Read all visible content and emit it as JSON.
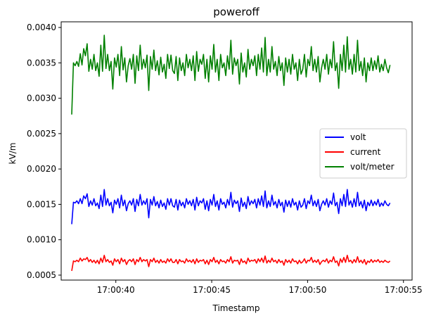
{
  "chart_data": {
    "type": "line",
    "title": "poweroff",
    "xlabel": "Timestamp",
    "ylabel": "kV/m",
    "xlim": [
      "17:00:37.15",
      "17:00:55.45"
    ],
    "ylim": [
      0.00043,
      0.00408
    ],
    "x_ticks": [
      "17:00:40",
      "17:00:45",
      "17:00:50",
      "17:00:55"
    ],
    "y_ticks": [
      "0.0005",
      "0.0010",
      "0.0015",
      "0.0020",
      "0.0025",
      "0.0030",
      "0.0035",
      "0.0040"
    ],
    "x_range": [
      "17:00:37.7",
      "17:00:54.3"
    ],
    "grid": false,
    "legend_position": "center-right",
    "series": [
      {
        "name": "volt",
        "color": "#0000ff",
        "values": [
          0.00122,
          0.00153,
          0.00152,
          0.00155,
          0.00151,
          0.00158,
          0.00151,
          0.00162,
          0.00158,
          0.00165,
          0.00147,
          0.00155,
          0.00149,
          0.00158,
          0.00148,
          0.00152,
          0.00144,
          0.00163,
          0.00147,
          0.00171,
          0.00149,
          0.00158,
          0.00148,
          0.00153,
          0.00138,
          0.00156,
          0.0015,
          0.00158,
          0.00145,
          0.00163,
          0.00148,
          0.00156,
          0.00141,
          0.00151,
          0.00155,
          0.00149,
          0.00158,
          0.0014,
          0.00157,
          0.00148,
          0.00164,
          0.00149,
          0.00155,
          0.0015,
          0.00158,
          0.00131,
          0.00157,
          0.00149,
          0.00161,
          0.00148,
          0.00154,
          0.00145,
          0.00156,
          0.00147,
          0.00152,
          0.00143,
          0.00158,
          0.00149,
          0.00158,
          0.00148,
          0.00146,
          0.00157,
          0.00142,
          0.00156,
          0.00148,
          0.00153,
          0.00145,
          0.00158,
          0.0015,
          0.00155,
          0.00148,
          0.00157,
          0.00142,
          0.0016,
          0.00148,
          0.00155,
          0.00152,
          0.00158,
          0.00143,
          0.00155,
          0.00141,
          0.00157,
          0.00149,
          0.00164,
          0.00147,
          0.00155,
          0.00142,
          0.00158,
          0.0015,
          0.00153,
          0.00145,
          0.00157,
          0.00149,
          0.00167,
          0.00146,
          0.00156,
          0.00151,
          0.00155,
          0.0014,
          0.00159,
          0.00147,
          0.00153,
          0.00144,
          0.00161,
          0.00149,
          0.00155,
          0.00151,
          0.00157,
          0.00145,
          0.00158,
          0.00149,
          0.00162,
          0.00147,
          0.00169,
          0.00145,
          0.00155,
          0.00147,
          0.00163,
          0.00149,
          0.00154,
          0.00145,
          0.00157,
          0.00148,
          0.00153,
          0.00139,
          0.00156,
          0.00147,
          0.00155,
          0.00146,
          0.00158,
          0.00149,
          0.00153,
          0.00142,
          0.00155,
          0.00146,
          0.00149,
          0.00158,
          0.00144,
          0.00155,
          0.00151,
          0.00163,
          0.00148,
          0.00155,
          0.00147,
          0.00157,
          0.00141,
          0.0015,
          0.00155,
          0.00149,
          0.00158,
          0.00146,
          0.00155,
          0.0015,
          0.00166,
          0.00148,
          0.00153,
          0.00137,
          0.00158,
          0.00148,
          0.00164,
          0.00147,
          0.00171,
          0.00149,
          0.00155,
          0.00146,
          0.00158,
          0.00147,
          0.00167,
          0.00148,
          0.00154,
          0.00145,
          0.00156,
          0.00141,
          0.00153,
          0.00148,
          0.00156,
          0.00148,
          0.00154,
          0.00149,
          0.00157,
          0.00147,
          0.00152,
          0.00148,
          0.00155,
          0.0015,
          0.00148,
          0.00152
        ]
      },
      {
        "name": "current",
        "color": "#ff0000",
        "values": [
          0.00056,
          0.0007,
          0.00069,
          0.00071,
          0.00069,
          0.00074,
          0.0007,
          0.00073,
          0.00072,
          0.00075,
          0.00069,
          0.00072,
          0.00068,
          0.00071,
          0.00067,
          0.00071,
          0.00066,
          0.00074,
          0.00068,
          0.00078,
          0.00069,
          0.00072,
          0.00068,
          0.0007,
          0.00064,
          0.00073,
          0.00069,
          0.00072,
          0.00066,
          0.00074,
          0.00069,
          0.00072,
          0.00065,
          0.0007,
          0.00072,
          0.00069,
          0.00073,
          0.00065,
          0.00072,
          0.00069,
          0.00075,
          0.00069,
          0.00072,
          0.0007,
          0.00072,
          0.00062,
          0.00072,
          0.00069,
          0.00074,
          0.00068,
          0.00071,
          0.00067,
          0.00072,
          0.00068,
          0.0007,
          0.00067,
          0.00073,
          0.00069,
          0.00073,
          0.00068,
          0.00068,
          0.00072,
          0.00066,
          0.00072,
          0.00069,
          0.0007,
          0.00067,
          0.00073,
          0.00069,
          0.00071,
          0.00068,
          0.00072,
          0.00066,
          0.00073,
          0.00068,
          0.00071,
          0.0007,
          0.00072,
          0.00066,
          0.00071,
          0.00065,
          0.00072,
          0.00069,
          0.00075,
          0.00068,
          0.00071,
          0.00066,
          0.00072,
          0.00069,
          0.0007,
          0.00067,
          0.00072,
          0.00069,
          0.00076,
          0.00067,
          0.00071,
          0.0007,
          0.00071,
          0.00065,
          0.00073,
          0.00068,
          0.0007,
          0.00066,
          0.00074,
          0.00069,
          0.00071,
          0.0007,
          0.00072,
          0.00067,
          0.00073,
          0.00069,
          0.00074,
          0.00068,
          0.00077,
          0.00067,
          0.00071,
          0.00068,
          0.00074,
          0.00069,
          0.00071,
          0.00067,
          0.00072,
          0.00068,
          0.0007,
          0.00064,
          0.00072,
          0.00068,
          0.00071,
          0.00067,
          0.00073,
          0.00069,
          0.0007,
          0.00066,
          0.00071,
          0.00067,
          0.00069,
          0.00073,
          0.00067,
          0.00071,
          0.0007,
          0.00075,
          0.00068,
          0.00071,
          0.00068,
          0.00072,
          0.00065,
          0.00069,
          0.00071,
          0.00069,
          0.00073,
          0.00067,
          0.00071,
          0.00069,
          0.00076,
          0.00068,
          0.0007,
          0.00063,
          0.00073,
          0.00068,
          0.00075,
          0.00068,
          0.00078,
          0.00069,
          0.00071,
          0.00067,
          0.00072,
          0.00068,
          0.00076,
          0.00068,
          0.00071,
          0.00067,
          0.00072,
          0.00065,
          0.0007,
          0.00068,
          0.00072,
          0.00068,
          0.00071,
          0.00069,
          0.00072,
          0.00068,
          0.0007,
          0.00068,
          0.00071,
          0.00069,
          0.00068,
          0.0007
        ]
      },
      {
        "name": "volt/meter",
        "color": "#008000",
        "values": [
          0.00277,
          0.0035,
          0.00346,
          0.00352,
          0.00345,
          0.00363,
          0.00347,
          0.0037,
          0.0036,
          0.00377,
          0.00338,
          0.00355,
          0.00341,
          0.00362,
          0.00339,
          0.0035,
          0.00331,
          0.00375,
          0.00338,
          0.00389,
          0.00342,
          0.00362,
          0.00339,
          0.00352,
          0.00313,
          0.00357,
          0.00344,
          0.00362,
          0.00332,
          0.00373,
          0.0034,
          0.00357,
          0.00323,
          0.00346,
          0.00356,
          0.00341,
          0.00362,
          0.00321,
          0.0036,
          0.00339,
          0.00375,
          0.00341,
          0.00355,
          0.00343,
          0.00361,
          0.00311,
          0.00359,
          0.00341,
          0.00368,
          0.00339,
          0.00353,
          0.00333,
          0.00358,
          0.00337,
          0.00348,
          0.00328,
          0.00362,
          0.00342,
          0.00361,
          0.00339,
          0.00335,
          0.00359,
          0.00325,
          0.00357,
          0.00339,
          0.0035,
          0.00332,
          0.00362,
          0.00343,
          0.00355,
          0.00339,
          0.0036,
          0.00325,
          0.00366,
          0.00338,
          0.00355,
          0.00348,
          0.00362,
          0.00328,
          0.00355,
          0.00323,
          0.0036,
          0.00341,
          0.00376,
          0.00337,
          0.00355,
          0.00325,
          0.00362,
          0.00343,
          0.0035,
          0.00332,
          0.0036,
          0.00341,
          0.00382,
          0.00334,
          0.00357,
          0.00346,
          0.00355,
          0.0032,
          0.00364,
          0.00337,
          0.0035,
          0.0033,
          0.00369,
          0.00341,
          0.00355,
          0.00346,
          0.0036,
          0.00332,
          0.00362,
          0.00341,
          0.00371,
          0.00337,
          0.00386,
          0.00332,
          0.00355,
          0.00337,
          0.00373,
          0.00341,
          0.00352,
          0.00332,
          0.00359,
          0.00339,
          0.0035,
          0.00318,
          0.00357,
          0.00337,
          0.00355,
          0.00334,
          0.00362,
          0.00341,
          0.0035,
          0.00325,
          0.00355,
          0.00334,
          0.00341,
          0.00362,
          0.0033,
          0.00355,
          0.00346,
          0.00373,
          0.00339,
          0.00355,
          0.00337,
          0.00359,
          0.00323,
          0.00343,
          0.00355,
          0.00341,
          0.00362,
          0.00334,
          0.00355,
          0.00343,
          0.0038,
          0.00339,
          0.0035,
          0.00314,
          0.00362,
          0.00339,
          0.00375,
          0.00337,
          0.00387,
          0.00341,
          0.00355,
          0.00334,
          0.00362,
          0.00337,
          0.00382,
          0.00339,
          0.00352,
          0.00332,
          0.00357,
          0.00323,
          0.0035,
          0.00339,
          0.00357,
          0.00339,
          0.00353,
          0.00341,
          0.0036,
          0.00337,
          0.00348,
          0.00339,
          0.00355,
          0.00343,
          0.00336,
          0.00347
        ]
      }
    ]
  }
}
